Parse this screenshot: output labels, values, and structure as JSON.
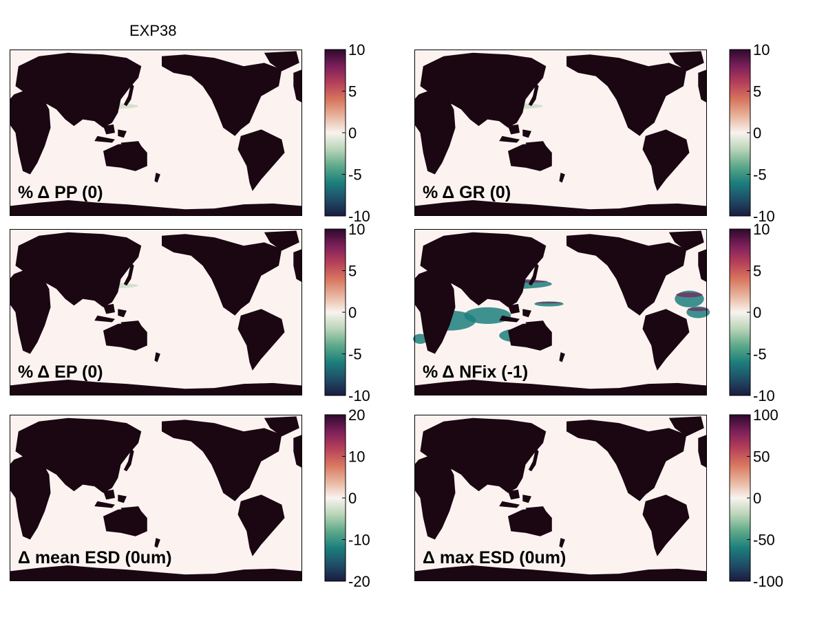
{
  "figure": {
    "title": "EXP38"
  },
  "colors": {
    "ocean": "#fcf3f1",
    "land": "#1a0711",
    "colormap": [
      "#1b1b3f",
      "#1f4e68",
      "#1c7f7c",
      "#5ea98a",
      "#b9d4b7",
      "#f8f3ef",
      "#e7b49d",
      "#d8755e",
      "#b53f5a",
      "#7c1f5a",
      "#2d0a2d"
    ]
  },
  "chart_data": [
    {
      "type": "heatmap",
      "field": "PP",
      "label": "% Δ PP (0)",
      "colorbar": {
        "range": [
          -10,
          10
        ],
        "ticks": [
          "10",
          "5",
          "0",
          "-5",
          "-10"
        ]
      },
      "features": [
        {
          "kind": "band",
          "region": "kuroshio-extension",
          "sign": "negative",
          "magnitude": "weak"
        }
      ]
    },
    {
      "type": "heatmap",
      "field": "GR",
      "label": "% Δ GR (0)",
      "colorbar": {
        "range": [
          -10,
          10
        ],
        "ticks": [
          "10",
          "5",
          "0",
          "-5",
          "-10"
        ]
      },
      "features": [
        {
          "kind": "band",
          "region": "kuroshio-extension",
          "sign": "negative",
          "magnitude": "weak"
        }
      ]
    },
    {
      "type": "heatmap",
      "field": "EP",
      "label": "% Δ EP (0)",
      "colorbar": {
        "range": [
          -10,
          10
        ],
        "ticks": [
          "10",
          "5",
          "0",
          "-5",
          "-10"
        ]
      },
      "features": [
        {
          "kind": "band",
          "region": "kuroshio-extension",
          "sign": "negative",
          "magnitude": "weak"
        }
      ]
    },
    {
      "type": "heatmap",
      "field": "NFix",
      "label": "% Δ NFix (-1)",
      "colorbar": {
        "range": [
          -10,
          10
        ],
        "ticks": [
          "10",
          "5",
          "0",
          "-5",
          "-10"
        ]
      },
      "features": [
        {
          "kind": "patches",
          "region": "north-pacific-20N",
          "sign": "mixed",
          "magnitude": "strong"
        },
        {
          "kind": "patches",
          "region": "indian-ocean-maritime-continent",
          "sign": "negative",
          "magnitude": "strong"
        },
        {
          "kind": "patches",
          "region": "tropical-atlantic",
          "sign": "mixed",
          "magnitude": "strong"
        }
      ]
    },
    {
      "type": "heatmap",
      "field": "mean ESD",
      "label": "Δ mean ESD (0um)",
      "colorbar": {
        "range": [
          -20,
          20
        ],
        "ticks": [
          "20",
          "10",
          "0",
          "-10",
          "-20"
        ]
      },
      "features": []
    },
    {
      "type": "heatmap",
      "field": "max ESD",
      "label": "Δ max ESD (0um)",
      "colorbar": {
        "range": [
          -100,
          100
        ],
        "ticks": [
          "100",
          "50",
          "0",
          "-50",
          "-100"
        ]
      },
      "features": []
    }
  ]
}
